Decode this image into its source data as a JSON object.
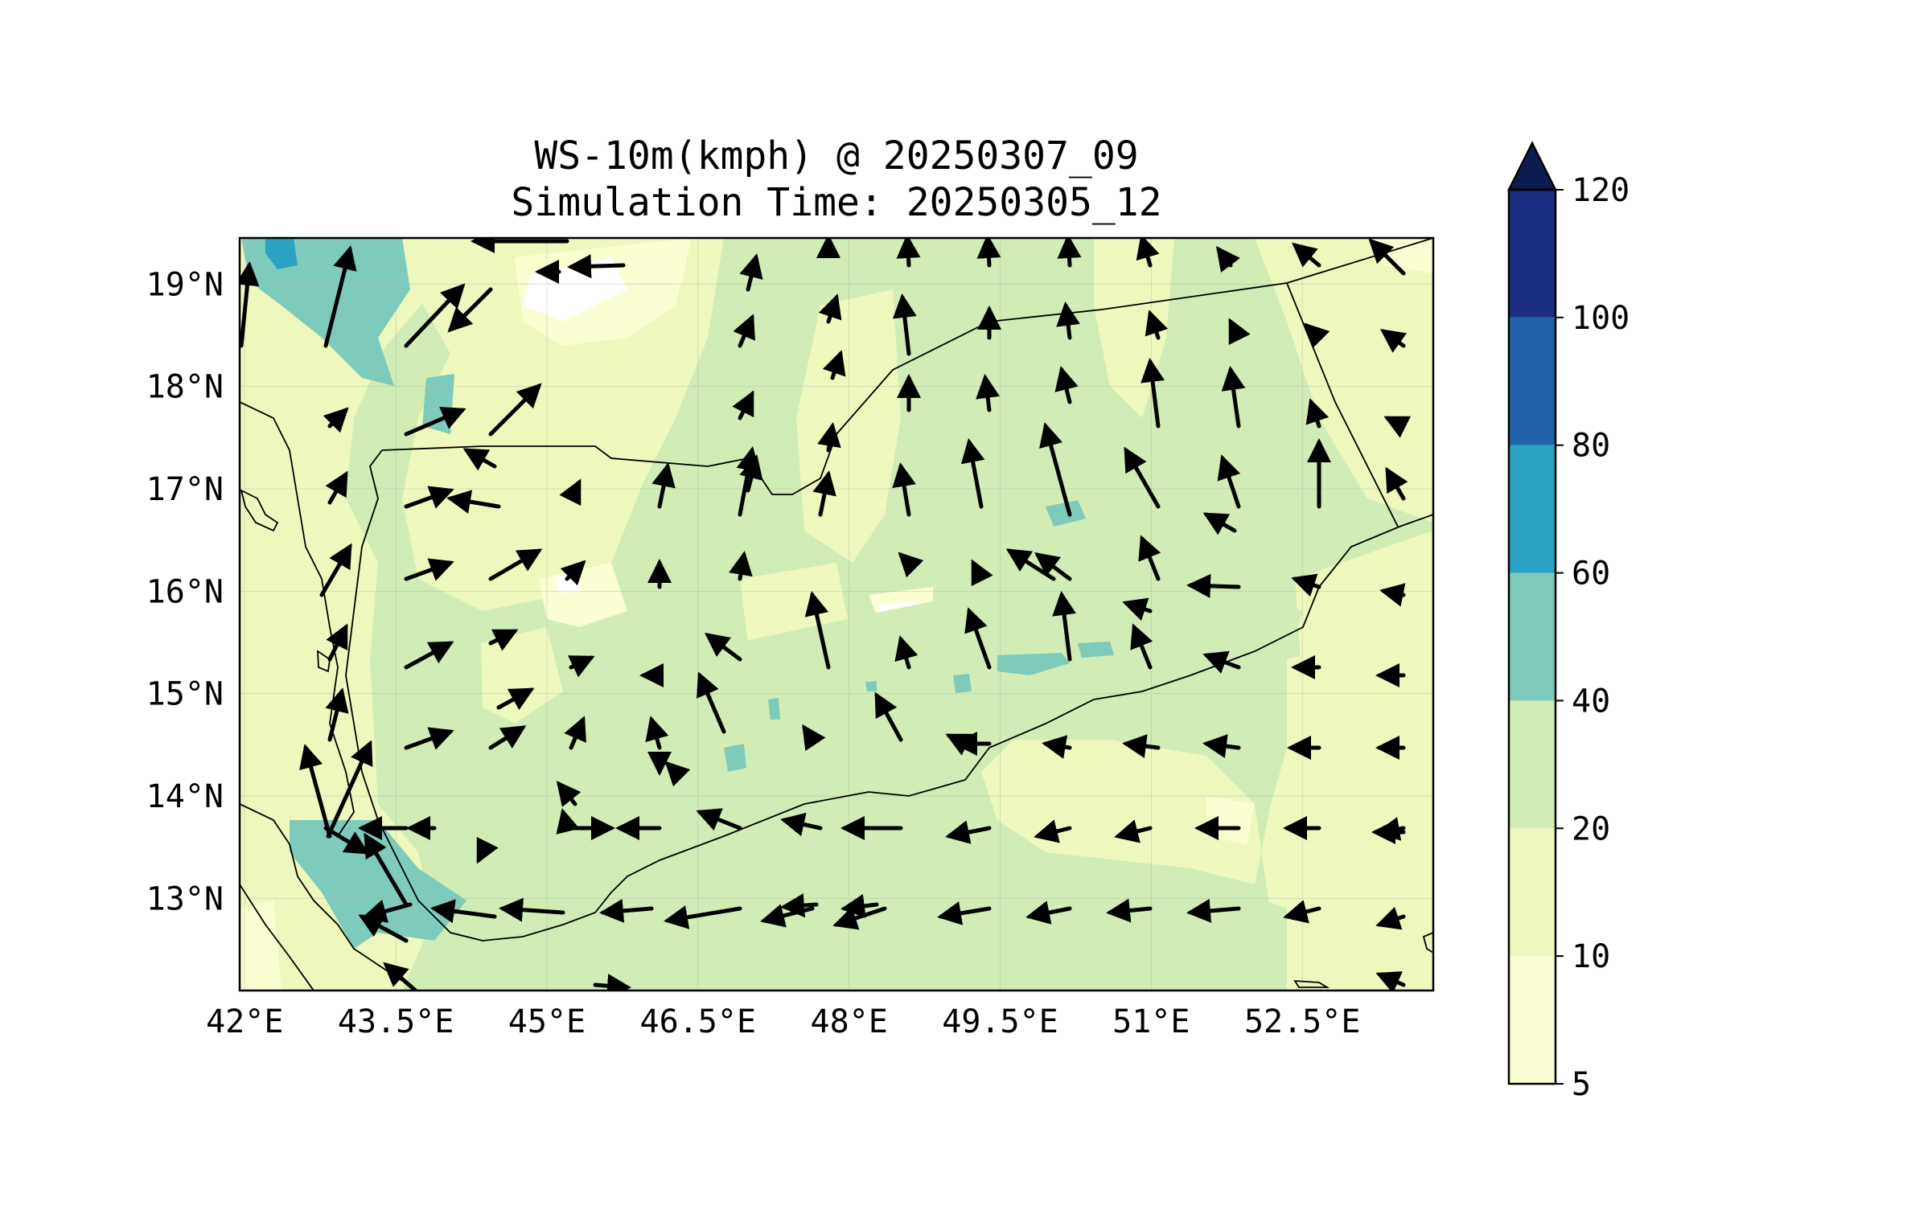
{
  "title": {
    "line1": "WS-10m(kmph) @ 20250307_09",
    "line2": "Simulation Time: 20250305_12"
  },
  "map": {
    "extent": {
      "lon": [
        41.95,
        53.8
      ],
      "lat": [
        12.1,
        19.45
      ]
    },
    "lon_ticks": [
      "42°E",
      "43.5°E",
      "45°E",
      "46.5°E",
      "48°E",
      "49.5°E",
      "51°E",
      "52.5°E"
    ],
    "lon_tick_values": [
      42,
      43.5,
      45,
      46.5,
      48,
      49.5,
      51,
      52.5
    ],
    "lat_ticks": [
      "19°N",
      "18°N",
      "17°N",
      "16°N",
      "15°N",
      "14°N",
      "13°N"
    ],
    "lat_tick_values": [
      19,
      18,
      17,
      16,
      15,
      14,
      13
    ],
    "base_fill_color": "#d1ecb5",
    "gridlines": true
  },
  "colorbar": {
    "levels": [
      "5",
      "10",
      "20",
      "40",
      "60",
      "80",
      "100",
      "120"
    ],
    "colors": [
      "#fafed0",
      "#eef8bd",
      "#d1ecb5",
      "#7ecbbc",
      "#2ca2c3",
      "#2262a9",
      "#1c2e7f",
      "#0d1c4e"
    ],
    "extend": "max"
  },
  "chart_data": {
    "type": "heatmap",
    "variable": "WS-10m(kmph)",
    "valid_time": "20250307_09",
    "simulation_time": "20250305_12",
    "vector_overlay": "10m wind direction arrows",
    "colorbar_levels": [
      5,
      10,
      20,
      40,
      60,
      80,
      100,
      120
    ]
  }
}
